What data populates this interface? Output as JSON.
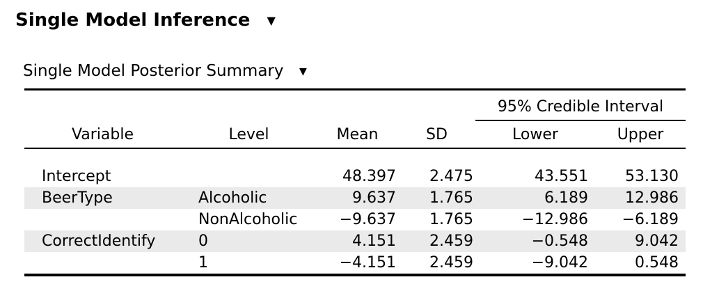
{
  "header": {
    "title": "Single Model Inference",
    "subtitle": "Single Model Posterior Summary"
  },
  "icons": {
    "dropdown": "▼"
  },
  "table": {
    "ci_group_header": "95% Credible Interval",
    "columns": [
      "Variable",
      "Level",
      "Mean",
      "SD",
      "Lower",
      "Upper"
    ],
    "row_keys": [
      "variable",
      "level",
      "mean",
      "sd",
      "lower",
      "upper"
    ],
    "rows": [
      {
        "variable": "Intercept",
        "level": "",
        "mean": "48.397",
        "sd": "2.475",
        "lower": "43.551",
        "upper": "53.130",
        "striped": false
      },
      {
        "variable": "BeerType",
        "level": "Alcoholic",
        "mean": "9.637",
        "sd": "1.765",
        "lower": "6.189",
        "upper": "12.986",
        "striped": true
      },
      {
        "variable": "",
        "level": "NonAlcoholic",
        "mean": "−9.637",
        "sd": "1.765",
        "lower": "−12.986",
        "upper": "−6.189",
        "striped": false
      },
      {
        "variable": "CorrectIdentify",
        "level": "0",
        "mean": "4.151",
        "sd": "2.459",
        "lower": "−0.548",
        "upper": "9.042",
        "striped": true
      },
      {
        "variable": "",
        "level": "1",
        "mean": "−4.151",
        "sd": "2.459",
        "lower": "−9.042",
        "upper": "0.548",
        "striped": false
      }
    ],
    "colors": {
      "stripe": "#eaeaea",
      "rule": "#000000",
      "text": "#000000"
    }
  }
}
